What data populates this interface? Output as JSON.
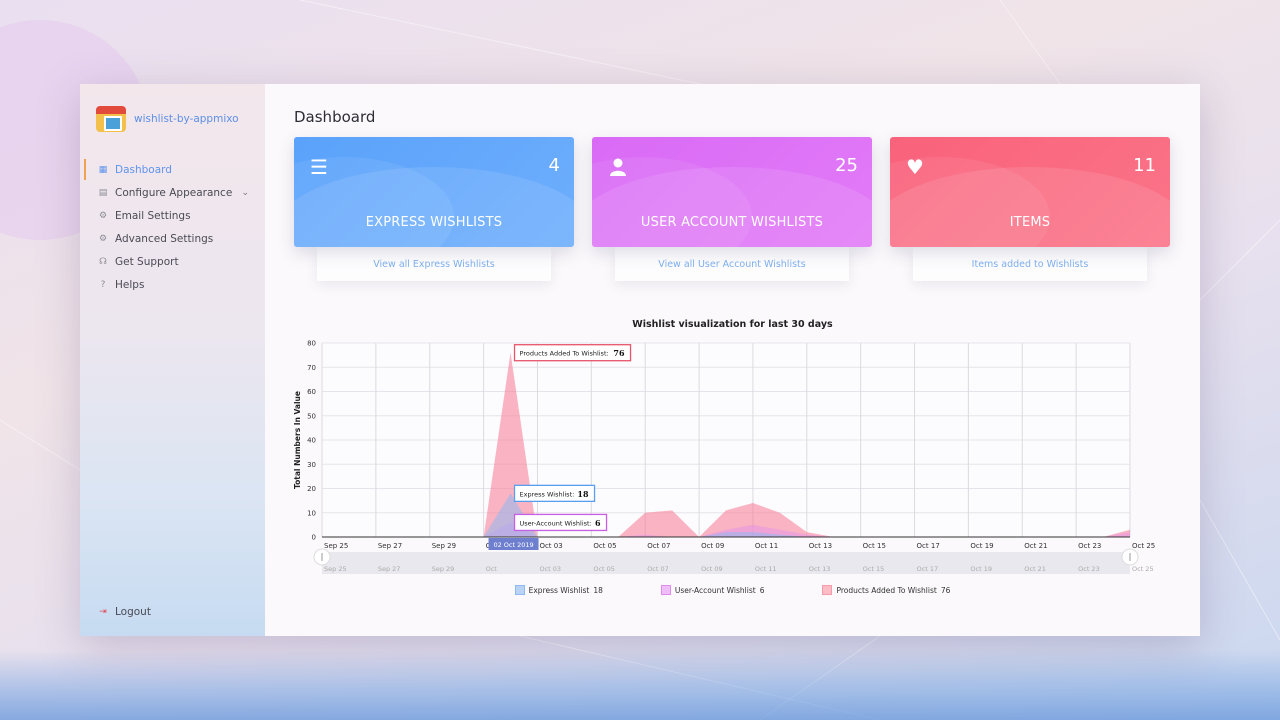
{
  "brand": {
    "name": "wishlist-by-appmixo"
  },
  "sidebar": {
    "items": [
      {
        "label": "Dashboard",
        "icon": "grid-icon",
        "active": true
      },
      {
        "label": "Configure Appearance",
        "icon": "layout-icon",
        "active": false
      },
      {
        "label": "Email Settings",
        "icon": "gear-icon",
        "active": false
      },
      {
        "label": "Advanced Settings",
        "icon": "gear-icon",
        "active": false
      },
      {
        "label": "Get Support",
        "icon": "headset-icon",
        "active": false
      },
      {
        "label": "Helps",
        "icon": "question-icon",
        "active": false
      }
    ],
    "logout": "Logout"
  },
  "page": {
    "title": "Dashboard"
  },
  "cards": [
    {
      "label": "EXPRESS WISHLISTS",
      "count": "4",
      "link": "View all Express Wishlists",
      "icon": "menu-icon",
      "color": "#5aa2fb"
    },
    {
      "label": "USER ACCOUNT WISHLISTS",
      "count": "25",
      "link": "View all User Account Wishlists",
      "icon": "user-icon",
      "color": "#d96af6"
    },
    {
      "label": "ITEMS",
      "count": "11",
      "link": "Items added to Wishlists",
      "icon": "heart-icon",
      "color": "#f9627b"
    }
  ],
  "chart_data": {
    "type": "area",
    "title": "Wishlist visualization for last 30 days",
    "ylabel": "Total Numbers In Value",
    "xlabel": "",
    "ylim": [
      0,
      80
    ],
    "yticks": [
      0,
      10,
      20,
      30,
      40,
      50,
      60,
      70,
      80
    ],
    "grid": true,
    "legend_position": "bottom",
    "x_ticks": [
      "Sep 25",
      "Sep 27",
      "Sep 29",
      "Oct",
      "Oct 03",
      "Oct 05",
      "Oct 07",
      "Oct 09",
      "Oct 11",
      "Oct 13",
      "Oct 15",
      "Oct 17",
      "Oct 19",
      "Oct 21",
      "Oct 23",
      "Oct 25"
    ],
    "x": [
      "Sep 25",
      "Sep 26",
      "Sep 27",
      "Sep 28",
      "Sep 29",
      "Sep 30",
      "Oct 01",
      "Oct 02",
      "Oct 03",
      "Oct 04",
      "Oct 05",
      "Oct 06",
      "Oct 07",
      "Oct 08",
      "Oct 09",
      "Oct 10",
      "Oct 11",
      "Oct 12",
      "Oct 13",
      "Oct 14",
      "Oct 15",
      "Oct 16",
      "Oct 17",
      "Oct 18",
      "Oct 19",
      "Oct 20",
      "Oct 21",
      "Oct 22",
      "Oct 23",
      "Oct 24",
      "Oct 25"
    ],
    "series": [
      {
        "name": "Express Wishlist",
        "legend_value": "18",
        "color": "#8fb8f2",
        "values": [
          0,
          0,
          0,
          0,
          0,
          0,
          0,
          18,
          0,
          0,
          0,
          0,
          0,
          0,
          0,
          2,
          2,
          1,
          0,
          0,
          0,
          0,
          0,
          0,
          0,
          0,
          0,
          0,
          0,
          0,
          0
        ]
      },
      {
        "name": "User-Account Wishlist",
        "legend_value": "6",
        "color": "#e08df0",
        "values": [
          0,
          0,
          0,
          0,
          0,
          0,
          0,
          6,
          0,
          0,
          0,
          0,
          1,
          0,
          0,
          3,
          5,
          3,
          1,
          0,
          0,
          0,
          0,
          0,
          0,
          0,
          0,
          0,
          0,
          0,
          2
        ]
      },
      {
        "name": "Products Added To Wishlist",
        "legend_value": "76",
        "color": "#f79aaa",
        "values": [
          0,
          0,
          0,
          0,
          0,
          0,
          0,
          76,
          0,
          0,
          0,
          0,
          10,
          11,
          0,
          11,
          14,
          10,
          2,
          0,
          0,
          0,
          0,
          0,
          0,
          0,
          0,
          0,
          0,
          0,
          3
        ]
      }
    ],
    "tooltips": [
      {
        "label": "Products Added To Wishlist:",
        "value": "76"
      },
      {
        "label": "Express Wishlist:",
        "value": "18"
      },
      {
        "label": "User-Account Wishlist:",
        "value": "6"
      }
    ],
    "crosshair_label": "02 Oct 2019"
  }
}
